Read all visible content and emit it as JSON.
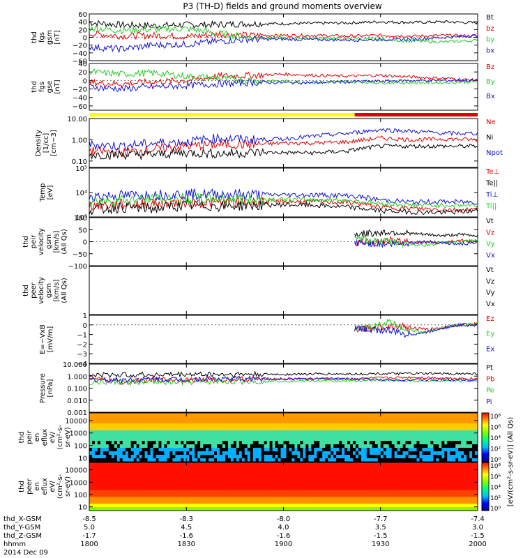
{
  "title": "P3 (TH-D) fields and ground moments overview",
  "colors": {
    "black": "#000000",
    "red": "#e00000",
    "green": "#22cc22",
    "blue": "#1010d0",
    "yellow": "#ffff00"
  },
  "chart_data": {
    "type": "multi-panel time series",
    "x_range_hhmm": [
      "1800",
      "2000"
    ],
    "x_tick_values_hhmm": [
      "1800",
      "1830",
      "1900",
      "1930",
      "2000"
    ],
    "x_footer_rows": [
      {
        "label": "thd_X-GSM",
        "values": [
          "-8.5",
          "-8.3",
          "-8.0",
          "-7.7",
          "-7.4"
        ]
      },
      {
        "label": "thd_Y-GSM",
        "values": [
          "5.0",
          "4.5",
          "4.0",
          "3.5",
          "3.0"
        ]
      },
      {
        "label": "thd_Z-GSM",
        "values": [
          "-1.7",
          "-1.6",
          "-1.6",
          "-1.5",
          "-1.5"
        ]
      },
      {
        "label": "hhmm",
        "values": [
          "1800",
          "1830",
          "1900",
          "1930",
          "2000"
        ]
      }
    ],
    "date": "2014 Dec 09",
    "mode_bar": {
      "yellow_until_hhmm": "1922",
      "red_from_hhmm": "1922"
    },
    "panels": [
      {
        "name": "fgs-gsm",
        "ylabel": [
          "thd",
          "fgs",
          "gsm",
          "[nT]"
        ],
        "scale": "linear",
        "ylim": [
          -60,
          60
        ],
        "ticks": [
          "60",
          "40",
          "20",
          "0",
          "−20",
          "−40",
          "−60"
        ],
        "series": [
          {
            "name": "Bt",
            "color": "black",
            "values": [
              38,
              32,
              30,
              32,
              33,
              35,
              35,
              36,
              37,
              40,
              38,
              40,
              37
            ]
          },
          {
            "name": "bz",
            "color": "red",
            "values": [
              10,
              3,
              5,
              2,
              8,
              5,
              5,
              5,
              3,
              5,
              3,
              5,
              3
            ]
          },
          {
            "name": "by",
            "color": "green",
            "values": [
              24,
              18,
              20,
              22,
              10,
              0,
              -2,
              -2,
              -4,
              -5,
              -10,
              -12,
              -8
            ]
          },
          {
            "name": "bx",
            "color": "blue",
            "values": [
              -25,
              -30,
              -20,
              -18,
              -10,
              -5,
              -5,
              -6,
              -7,
              -6,
              -5,
              0,
              5
            ]
          }
        ]
      },
      {
        "name": "fgs-gse",
        "ylabel": [
          "thd",
          "fgs",
          "gse",
          "[nT]"
        ],
        "scale": "linear",
        "ylim": [
          -70,
          40
        ],
        "ticks": [
          "40",
          "20",
          "0",
          "−20",
          "−40",
          "−60"
        ],
        "series": [
          {
            "name": "Bz",
            "color": "red",
            "values": [
              -5,
              -8,
              -3,
              0,
              10,
              12,
              15,
              12,
              10,
              12,
              8,
              5,
              0
            ]
          },
          {
            "name": "By",
            "color": "green",
            "values": [
              20,
              15,
              18,
              10,
              5,
              0,
              -2,
              -5,
              -3,
              -5,
              -5,
              -5,
              -3
            ]
          },
          {
            "name": "Bx",
            "color": "blue",
            "values": [
              -15,
              -20,
              -15,
              -12,
              -8,
              -5,
              -5,
              -5,
              -3,
              -2,
              0,
              0,
              0
            ]
          }
        ]
      },
      {
        "name": "density",
        "ylabel": [
          "Density",
          "[1/cc]",
          "[cm−3]"
        ],
        "scale": "log",
        "ylim": [
          0.05,
          10
        ],
        "ticks": [
          "10.00",
          "1.00",
          "0.10"
        ],
        "series": [
          {
            "name": "Ne",
            "color": "red",
            "values": [
              0.3,
              0.25,
              0.35,
              0.5,
              0.6,
              0.6,
              0.7,
              0.7,
              0.8,
              1.2,
              1.0,
              1.1,
              1.0
            ]
          },
          {
            "name": "Ni",
            "color": "black",
            "values": [
              0.2,
              0.2,
              0.2,
              0.25,
              0.22,
              0.25,
              0.25,
              0.24,
              0.3,
              0.5,
              0.5,
              0.5,
              0.5
            ]
          },
          {
            "name": "Npot",
            "color": "blue",
            "values": [
              0.6,
              0.5,
              0.7,
              0.8,
              1.2,
              1.0,
              1.1,
              1.5,
              2.0,
              3.0,
              2.5,
              2.0,
              2.0
            ]
          }
        ]
      },
      {
        "name": "temperature",
        "ylabel": [
          "Temp",
          "[eV]"
        ],
        "scale": "log",
        "ylim": [
          1000,
          100000
        ],
        "ticks": [
          "10⁵",
          "10⁴",
          "10³"
        ],
        "series": [
          {
            "name": "Te⊥",
            "color": "red",
            "values": [
              3000,
              3200,
              3500,
              4000,
              3800,
              4000,
              4200,
              4200,
              4000,
              2500,
              2200,
              2000,
              2000
            ]
          },
          {
            "name": "Te||",
            "color": "black",
            "values": [
              2000,
              2500,
              2200,
              3000,
              2800,
              3000,
              3200,
              3000,
              2500,
              1800,
              1600,
              1500,
              1800
            ]
          },
          {
            "name": "Ti⊥",
            "color": "blue",
            "values": [
              7000,
              7500,
              8000,
              8500,
              8500,
              8200,
              8000,
              8000,
              7500,
              5000,
              4000,
              4200,
              4000
            ]
          },
          {
            "name": "Ti||",
            "color": "green",
            "values": [
              4500,
              5000,
              5200,
              5500,
              5500,
              5400,
              5200,
              5000,
              4800,
              3500,
              3000,
              3000,
              3000
            ]
          }
        ]
      },
      {
        "name": "peir velocity",
        "ylabel": [
          "thd",
          "peir",
          "velocity",
          "gsm",
          "[km/s]",
          "(All Qs)"
        ],
        "scale": "linear",
        "ylim": [
          -100,
          100
        ],
        "ticks": [
          "100",
          "50",
          "0",
          "−50",
          "−100"
        ],
        "legend": [
          "Vt",
          "Vz",
          "Vy",
          "Vx"
        ],
        "x_start_hhmm": "1922",
        "series": [
          {
            "name": "Vt",
            "color": "black",
            "values": [
              30,
              35,
              40,
              35,
              30,
              25,
              30,
              25
            ]
          },
          {
            "name": "Vz",
            "color": "red",
            "values": [
              -5,
              0,
              5,
              0,
              -5,
              0,
              5,
              0
            ]
          },
          {
            "name": "Vy",
            "color": "green",
            "values": [
              10,
              5,
              0,
              -10,
              -15,
              -5,
              0,
              5
            ]
          },
          {
            "name": "Vx",
            "color": "blue",
            "values": [
              -5,
              -8,
              -10,
              -5,
              0,
              -5,
              -10,
              -5
            ]
          }
        ]
      },
      {
        "name": "peer velocity",
        "ylabel": [
          "thd",
          "peer",
          "velocity",
          "gsm",
          "[km/s]",
          "(All Qs)"
        ],
        "scale": "linear",
        "legend": [
          "Vt",
          "Vz",
          "Vy",
          "Vx"
        ],
        "series": []
      },
      {
        "name": "E=-VxB",
        "ylabel": [
          "E=−VxB",
          "[mV/m]"
        ],
        "scale": "linear",
        "ylim": [
          -4,
          1
        ],
        "ticks": [
          "1",
          "0",
          "−1",
          "−2",
          "−3",
          "−4"
        ],
        "x_start_hhmm": "1922",
        "series": [
          {
            "name": "Ez",
            "color": "red",
            "values": [
              -0.5,
              -0.3,
              -0.1,
              -0.2,
              -0.5,
              -0.3,
              0.0,
              0.1
            ]
          },
          {
            "name": "Ey",
            "color": "green",
            "values": [
              -0.5,
              -0.2,
              0.3,
              -0.5,
              -0.8,
              -0.3,
              0.0,
              0.1
            ]
          },
          {
            "name": "Ex",
            "color": "blue",
            "values": [
              -0.4,
              -0.5,
              -0.6,
              -1.0,
              -0.8,
              -0.3,
              0.0,
              0.0
            ]
          }
        ]
      },
      {
        "name": "pressure",
        "ylabel": [
          "Pressure",
          "[nPa]"
        ],
        "scale": "log",
        "ylim": [
          0.001,
          10
        ],
        "ticks": [
          "10.000",
          "1.000",
          "0.100",
          "0.010",
          "0.001"
        ],
        "series": [
          {
            "name": "Pt",
            "color": "black",
            "values": [
              1.2,
              1.3,
              1.3,
              1.4,
              1.4,
              1.4,
              1.4,
              1.5,
              1.5,
              1.6,
              1.6,
              1.6,
              1.6
            ]
          },
          {
            "name": "Pb",
            "color": "red",
            "values": [
              0.6,
              0.3,
              0.5,
              0.5,
              0.5,
              0.6,
              0.6,
              0.6,
              0.6,
              0.7,
              0.8,
              0.7,
              0.6
            ]
          },
          {
            "name": "Pe",
            "color": "green",
            "values": [
              0.3,
              0.3,
              0.3,
              0.3,
              0.35,
              0.35,
              0.4,
              0.4,
              0.4,
              0.45,
              0.4,
              0.4,
              0.4
            ]
          },
          {
            "name": "Pi",
            "color": "blue",
            "values": [
              0.5,
              0.5,
              0.55,
              0.55,
              0.6,
              0.6,
              0.6,
              0.6,
              0.6,
              0.5,
              0.5,
              0.5,
              0.5
            ]
          }
        ]
      },
      {
        "name": "peir en eflux",
        "type": "heatmap",
        "ylabel": [
          "thd",
          "peir",
          "en",
          "eflux",
          "eV/",
          "(cm²-s-",
          "sr-eV)"
        ],
        "scale": "log",
        "ylim": [
          5,
          40000
        ],
        "ticks": [
          "10000",
          "1000",
          "100",
          "10"
        ]
      },
      {
        "name": "peer en eflux",
        "type": "heatmap",
        "ylabel": [
          "thd",
          "peer",
          "en",
          "eflux",
          "eV/",
          "(cm²-s-",
          "sr-eV)"
        ],
        "scale": "log",
        "ylim": [
          5,
          40000
        ],
        "ticks": [
          "10000",
          "1000",
          "100",
          "10"
        ]
      }
    ],
    "colorbar": {
      "label": "[eV/(cm²-s-sr-eV)] (All Qs)",
      "ticks_upper": [
        "10⁸",
        "10⁶",
        "10⁴",
        "10²",
        "10⁰"
      ],
      "ticks_lower": [
        "10⁸",
        "10⁶",
        "10⁴",
        "10²",
        "10⁰"
      ]
    }
  }
}
